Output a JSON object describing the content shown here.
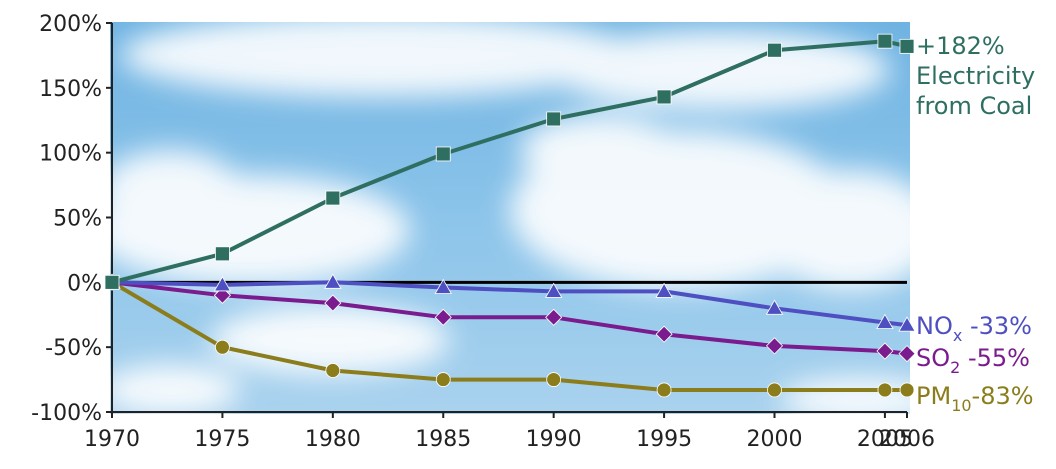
{
  "chart_data": {
    "type": "line",
    "x": [
      1970,
      1975,
      1980,
      1985,
      1990,
      1995,
      2000,
      2005,
      2006
    ],
    "ylim": [
      -100,
      200
    ],
    "yticks": [
      200,
      150,
      100,
      50,
      0,
      -50,
      -100
    ],
    "ytick_labels": [
      "200%",
      "150%",
      "100%",
      "50%",
      "0%",
      "-50%",
      "-100%"
    ],
    "xtick_labels": [
      "1970",
      "1975",
      "1980",
      "1985",
      "1990",
      "1995",
      "2000",
      "2005",
      "2006"
    ],
    "grid": false,
    "background": "sky-with-clouds",
    "zero_line_color": "#000000",
    "series": [
      {
        "key": "coal",
        "values": [
          0,
          22,
          65,
          99,
          126,
          143,
          179,
          186,
          182
        ],
        "marker": "square",
        "color": "#2f6f62",
        "label": {
          "value": "+182%",
          "line2": "Electricity",
          "line3": "from Coal"
        }
      },
      {
        "key": "nox",
        "values": [
          0,
          -2,
          0,
          -4,
          -7,
          -7,
          -20,
          -31,
          -33
        ],
        "marker": "triangle",
        "color": "#4e4fc0",
        "label": {
          "main": "NO",
          "sub": "x",
          "value": " -33%"
        }
      },
      {
        "key": "so2",
        "values": [
          0,
          -10,
          -16,
          -27,
          -27,
          -40,
          -49,
          -53,
          -55
        ],
        "marker": "diamond",
        "color": "#7a1b8e",
        "label": {
          "main": "SO",
          "sub": "2",
          "value": " -55%"
        }
      },
      {
        "key": "pm10",
        "values": [
          0,
          -50,
          -68,
          -75,
          -75,
          -83,
          -83,
          -83,
          -83
        ],
        "marker": "circle",
        "color": "#8c7d1c",
        "label": {
          "main": "PM",
          "sub": "10",
          "value": "-83%"
        }
      }
    ]
  }
}
